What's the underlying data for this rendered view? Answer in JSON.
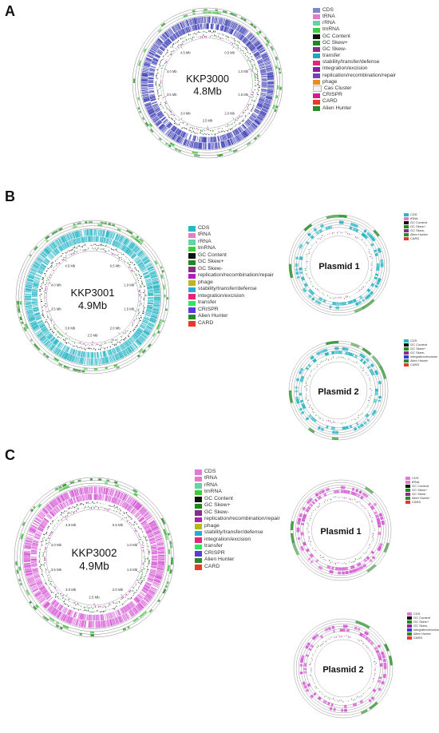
{
  "panels": [
    {
      "letter": "A",
      "main": {
        "name": "KKP3000",
        "size": "4.8Mb",
        "color": "#3d3fb5",
        "ticks": [
          "0.5 Mb",
          "1.0 Mb",
          "1.5 Mb",
          "2.0 Mb",
          "2.5 Mb",
          "3.0 Mb",
          "3.5 Mb",
          "4.0 Mb",
          "4.5 Mb"
        ]
      },
      "legend": [
        {
          "label": "CDS",
          "color": "#7d87c9"
        },
        {
          "label": "tRNA",
          "color": "#e57ac6"
        },
        {
          "label": "rRNA",
          "color": "#63d4a6"
        },
        {
          "label": "tmRNA",
          "color": "#3ecb3e"
        },
        {
          "label": "GC Content",
          "color": "#111111"
        },
        {
          "label": "GC Skew+",
          "color": "#1e8a1e"
        },
        {
          "label": "GC Skew-",
          "color": "#8a2a8a"
        },
        {
          "label": "transfer",
          "color": "#1fa8b8"
        },
        {
          "label": "stability/transfer/defense",
          "color": "#e8247a"
        },
        {
          "label": "integration/excision",
          "color": "#8a1fa8"
        },
        {
          "label": "replication/recombination/repair",
          "color": "#7a3fb8"
        },
        {
          "label": "phage",
          "color": "#e88c20"
        },
        {
          "label": "Cas Cluster",
          "color": "#f2f2f2"
        },
        {
          "label": "CRISPR",
          "color": "#d01f8a"
        },
        {
          "label": "CARD",
          "color": "#e83a2a"
        },
        {
          "label": "Alien Hunter",
          "color": "#2a8a2a"
        }
      ],
      "plasmids": []
    },
    {
      "letter": "B",
      "main": {
        "name": "KKP3001",
        "size": "4.9Mb",
        "color": "#29b6c6",
        "ticks": [
          "0.5 Mb",
          "1.0 Mb",
          "1.5 Mb",
          "2.0 Mb",
          "2.5 Mb",
          "3.0 Mb",
          "3.5 Mb",
          "4.0 Mb",
          "4.5 Mb"
        ]
      },
      "legend": [
        {
          "label": "CDS",
          "color": "#29b6c6"
        },
        {
          "label": "tRNA",
          "color": "#e57ac6"
        },
        {
          "label": "rRNA",
          "color": "#63d4a6"
        },
        {
          "label": "tmRNA",
          "color": "#3ecb3e"
        },
        {
          "label": "GC Content",
          "color": "#111111"
        },
        {
          "label": "GC Skew+",
          "color": "#1e8a1e"
        },
        {
          "label": "GC Skew-",
          "color": "#8a2a8a"
        },
        {
          "label": "replication/recombination/repair",
          "color": "#b020b0"
        },
        {
          "label": "phage",
          "color": "#b8b820"
        },
        {
          "label": "stability/transfer/defense",
          "color": "#2aa8d8"
        },
        {
          "label": "integration/excision",
          "color": "#e8247a"
        },
        {
          "label": "transfer",
          "color": "#2ae85a"
        },
        {
          "label": "CRISPR",
          "color": "#5a3ad8"
        },
        {
          "label": "Alien Hunter",
          "color": "#2a8a2a"
        },
        {
          "label": "CARD",
          "color": "#e83a2a"
        }
      ],
      "plasmids": [
        {
          "name": "Plasmid 1",
          "color": "#29b6c6",
          "legend": [
            {
              "label": "CDS",
              "color": "#29b6c6"
            },
            {
              "label": "tRNA",
              "color": "#e57ac6"
            },
            {
              "label": "GC Content",
              "color": "#111111"
            },
            {
              "label": "GC Skew+",
              "color": "#1e8a1e"
            },
            {
              "label": "GC Skew-",
              "color": "#8a2a8a"
            },
            {
              "label": "Alien Hunter",
              "color": "#2a8a2a"
            },
            {
              "label": "CARD",
              "color": "#e83a2a"
            }
          ]
        },
        {
          "name": "Plasmid 2",
          "color": "#29b6c6",
          "legend": [
            {
              "label": "CDS",
              "color": "#29b6c6"
            },
            {
              "label": "GC Content",
              "color": "#111111"
            },
            {
              "label": "GC Skew+",
              "color": "#1e8a1e"
            },
            {
              "label": "GC Skew-",
              "color": "#8a2a8a"
            },
            {
              "label": "integration/excision",
              "color": "#3a3ad8"
            },
            {
              "label": "Alien Hunter",
              "color": "#2a8a2a"
            },
            {
              "label": "CARD",
              "color": "#e83a2a"
            }
          ]
        }
      ]
    },
    {
      "letter": "C",
      "main": {
        "name": "KKP3002",
        "size": "4.9Mb",
        "color": "#d65ad6",
        "ticks": [
          "0.5 Mb",
          "1.0 Mb",
          "1.5 Mb",
          "2.0 Mb",
          "2.5 Mb",
          "3.0 Mb",
          "3.5 Mb",
          "4.0 Mb",
          "4.5 Mb"
        ]
      },
      "legend": [
        {
          "label": "CDS",
          "color": "#e07ad8"
        },
        {
          "label": "tRNA",
          "color": "#e57ac6"
        },
        {
          "label": "rRNA",
          "color": "#63d4a6"
        },
        {
          "label": "tmRNA",
          "color": "#3ecb3e"
        },
        {
          "label": "GC Content",
          "color": "#111111"
        },
        {
          "label": "GC Skew+",
          "color": "#1e8a1e"
        },
        {
          "label": "GC Skew-",
          "color": "#8a2a8a"
        },
        {
          "label": "replication/recombination/repair",
          "color": "#b020b0"
        },
        {
          "label": "phage",
          "color": "#b8b820"
        },
        {
          "label": "stability/transfer/defense",
          "color": "#2aa8d8"
        },
        {
          "label": "integration/excision",
          "color": "#e8247a"
        },
        {
          "label": "transfer",
          "color": "#2ae85a"
        },
        {
          "label": "CRISPR",
          "color": "#5a3ad8"
        },
        {
          "label": "Alien Hunter",
          "color": "#2a8a2a"
        },
        {
          "label": "CARD",
          "color": "#e83a2a"
        }
      ],
      "plasmids": [
        {
          "name": "Plasmid 1",
          "color": "#d65ad6",
          "legend": [
            {
              "label": "CDS",
              "color": "#e07ad8"
            },
            {
              "label": "tRNA",
              "color": "#e57ac6"
            },
            {
              "label": "GC Content",
              "color": "#111111"
            },
            {
              "label": "GC Skew+",
              "color": "#1e8a1e"
            },
            {
              "label": "GC Skew-",
              "color": "#8a2a8a"
            },
            {
              "label": "Alien Hunter",
              "color": "#2a8a2a"
            },
            {
              "label": "CARD",
              "color": "#e83a2a"
            }
          ]
        },
        {
          "name": "Plasmid 2",
          "color": "#d65ad6",
          "legend": [
            {
              "label": "CDS",
              "color": "#e07ad8"
            },
            {
              "label": "GC Content",
              "color": "#111111"
            },
            {
              "label": "GC Skew+",
              "color": "#1e8a1e"
            },
            {
              "label": "GC Skew-",
              "color": "#8a2a8a"
            },
            {
              "label": "integration/excision",
              "color": "#3a3ad8"
            },
            {
              "label": "Alien Hunter",
              "color": "#2a8a2a"
            },
            {
              "label": "CARD",
              "color": "#e83a2a"
            }
          ]
        }
      ]
    }
  ]
}
